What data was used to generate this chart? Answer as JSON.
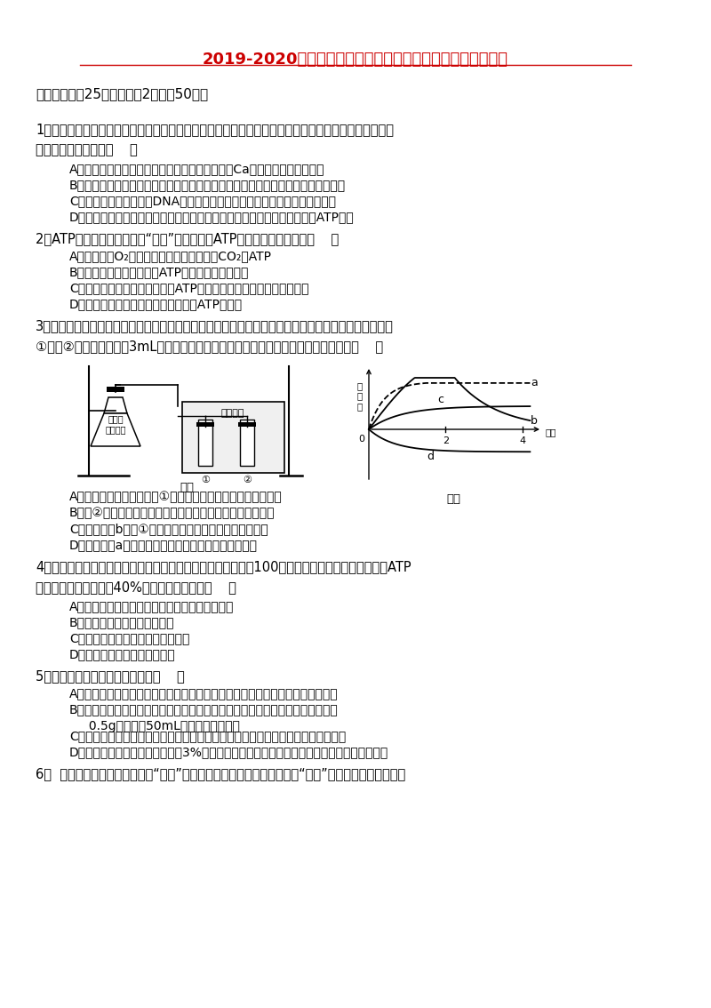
{
  "title": "2019-2020年高二生物下学期期末（暨新高三升学）考试试题",
  "title_color": "#CC0000",
  "bg_color": "#FFFFFF",
  "section1": "一、选择题（25小题，每题2分，共50分）",
  "q1_stem": "1．细胞是生物体结构和功能的基本单位，是由多种元素和化合物构成的生命系统。下列关于细胞组成成\n分的说法不正确的是（    ）",
  "q1_options": [
    "A．微量元素在细胞中含量很少，但不可替代，如Ca是构成细胞的必需元素",
    "B．蛋白质和核酸是所有细胞都含有的大分子有机物，单独存在时无法完成生命活动",
    "C．细胞质中存在作用于DNA的解旋酶，空间结构发生改变时可导致活性丧失",
    "D．进入寒冷环境时，人体肾上腺素和甲状腺激素的分泌增多，细胞产生的ATP变多"
  ],
  "q2_stem": "2．ATP是细胞内流通的能量“通货”。下列关于ATP的说法中，正确的是（    ）",
  "q2_options": [
    "A．只要提供O₂，线粒体就能为叶绻体提供CO₂和ATP",
    "B．洋葱表皮细胞中能形成ATP的细胞器只有线粒体",
    "C．细胞吸收钒离子的过程中，ATP中高能磷酸键的能量都会释放出来",
    "D．有氧呼吸和无氧呼吸的全过程都有ATP的合成"
  ],
  "q3_stem": "3．为研究酵母菌的发酵产物，某研究小组设计了如下图甲所示的装置，并将有关检测结果绘制成图乙。\n①号、②号试管中均加入3mL蒸馏水和一定量的检验试剂。据图分析下列说法正确的是（    ）",
  "q3_options": [
    "A．检验发酵产物酒精需向①号试管中滴加含重铬酸钒的浓硫酸",
    "B．设②号试管对照组是为了排除无关变量温度对实验的干扰",
    "C．图乙曲线b表示①号试管内玻璃管口气泡释放速率变化",
    "D．图乙曲线a表示酵母菌培养液中酵母菌数量变化规律"
  ],
  "q4_stem": "4．某些植物在早春开花时，花序细胞的耗氧速率高出其他细胞100倍以上，但单位质量葡萄糖生成ATP\n的量却只有其他细胞的40%，此时的花序细胞（    ）",
  "q4_options": [
    "A．同时发生有氧呼吸和无氧呼吸，无氧呼吸为主",
    "B．产生的热量远多于其他细胞",
    "C．只在细胞质基质中发生呼吸作用",
    "D．没有进行有氧呼吸第三阶段"
  ],
  "q5_stem": "5．下列关于实验的叙述正确的是（    ）",
  "q5_options": [
    "A．探究温度对唠液淠粉酶活性的影响，检验淠粉是否分解的适宜试剂是斐林试剂",
    "B．用高倍显微镜观察人口腔上皮细胞的线粒体时，在洁净的载玻片中央滴一滴用\n     0.5g健那绳和50mL蒸馏水配制的染液",
    "C．在用高倍显微镜观察叶绻体和线粒体的实验中，看到的是它们生活状态下的形态",
    "D．探究温度对酶活性的影响，儇3%过氧化氢溶液中加入不同温度下保温后的过氧化氢酶溶液"
  ],
  "q6_stem": "6．  阳光穿过森林中的空隙形成“光斌”，如图表示一株生长旺盛的植物在“光斌”照射前后光合作用吸收"
}
